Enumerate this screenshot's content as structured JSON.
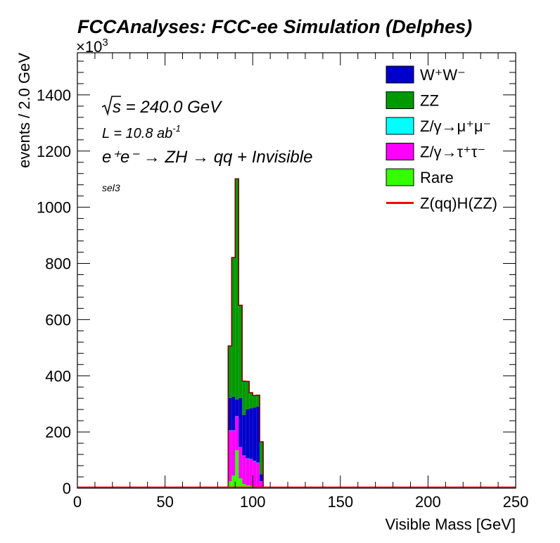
{
  "chart_data": {
    "type": "bar",
    "stacked": true,
    "title": "FCCAnalyses: FCC-ee Simulation (Delphes)",
    "xlabel": "Visible Mass [GeV]",
    "ylabel": "events / 2.0 GeV",
    "y_multiplier": "×10",
    "y_multiplier_exp": "3",
    "xlim": [
      0,
      250
    ],
    "ylim": [
      0,
      1550
    ],
    "x_ticks": [
      0,
      50,
      100,
      150,
      200,
      250
    ],
    "y_ticks": [
      0,
      200,
      400,
      600,
      800,
      1000,
      1200,
      1400
    ],
    "bin_width": 2.0,
    "bin_edges": [
      86,
      88,
      90,
      92,
      94,
      96,
      98,
      100,
      102,
      104,
      106
    ],
    "annotations": {
      "sqrt_s": "s",
      "sqrt_s_rest": " = 240.0 GeV",
      "lumi_main": "L = 10.8 ab",
      "lumi_exp": "-1",
      "process": "e⁺e⁻ → ZH → qq + Invisible",
      "selection": "sel3"
    },
    "series": [
      {
        "key": "rare",
        "color": "#33ff00",
        "values": [
          25,
          45,
          135,
          35,
          15,
          10,
          8,
          6,
          5,
          3
        ]
      },
      {
        "key": "tautau",
        "color": "#ff00ff",
        "values": [
          180,
          160,
          120,
          110,
          100,
          95,
          95,
          90,
          85,
          20
        ]
      },
      {
        "key": "mumu",
        "color": "#00ffff",
        "values": [
          1,
          1,
          1,
          1,
          1,
          1,
          1,
          1,
          1,
          1
        ]
      },
      {
        "key": "ww",
        "color": "#0000cc",
        "values": [
          115,
          120,
          60,
          175,
          145,
          175,
          180,
          190,
          200,
          25
        ]
      },
      {
        "key": "zz",
        "color": "#009900",
        "values": [
          185,
          495,
          785,
          330,
          120,
          99,
          56,
          43,
          40,
          116
        ]
      },
      {
        "key": "signal",
        "color": "#ff0000",
        "line": true,
        "values": [
          2,
          4,
          6,
          4,
          3,
          3,
          2,
          2,
          2,
          1
        ]
      }
    ],
    "legend": {
      "placement": "top-right",
      "entries": [
        {
          "key": "ww",
          "label": "W⁺W⁻",
          "color": "#0000cc",
          "kind": "box"
        },
        {
          "key": "zz",
          "label": "ZZ",
          "color": "#009900",
          "kind": "box"
        },
        {
          "key": "mumu",
          "label": "Z/γ→μ⁺μ⁻",
          "color": "#00ffff",
          "kind": "box"
        },
        {
          "key": "tautau",
          "label": "Z/γ→τ⁺τ⁻",
          "color": "#ff00ff",
          "kind": "box"
        },
        {
          "key": "rare",
          "label": "Rare",
          "color": "#33ff00",
          "kind": "box"
        },
        {
          "key": "signal",
          "label": "Z(qq)H(ZZ)",
          "color": "#ff0000",
          "kind": "line"
        }
      ]
    }
  }
}
